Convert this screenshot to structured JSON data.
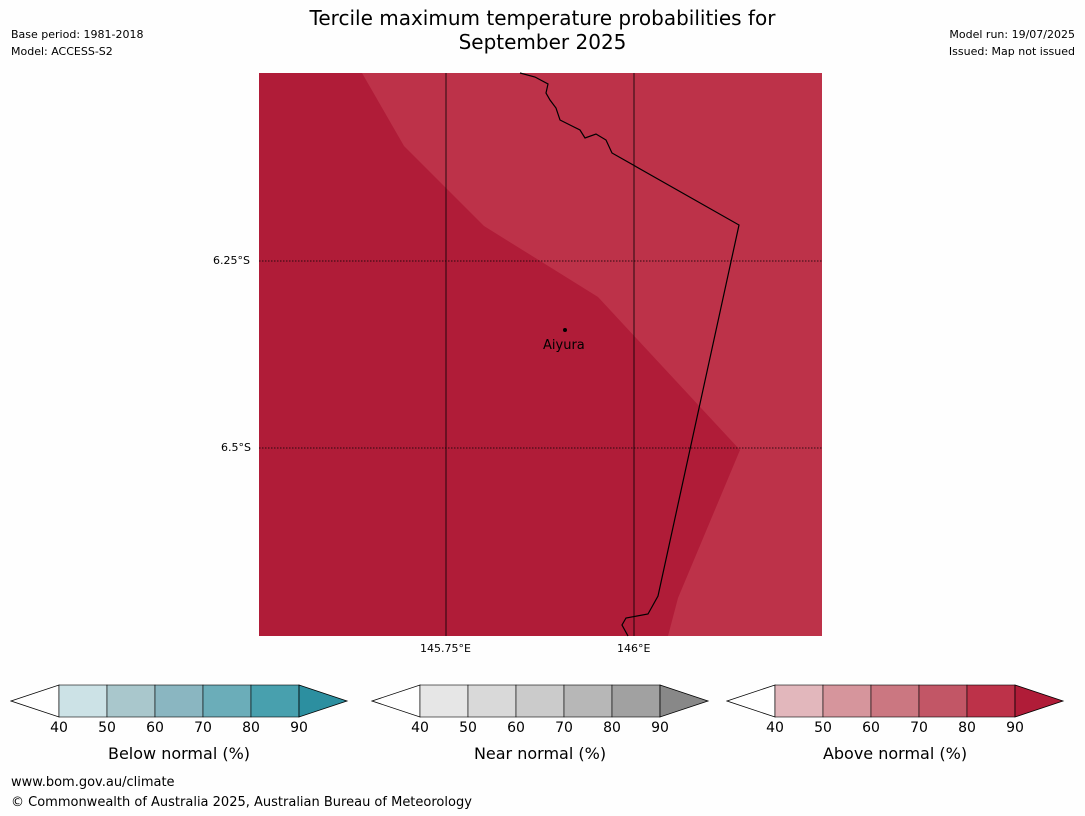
{
  "header": {
    "title_line1": "Tercile maximum temperature probabilities for",
    "title_line2": "September 2025",
    "base_period": "Base period: 1981-2018",
    "model": "Model: ACCESS-S2",
    "model_run": "Model run: 19/07/2025",
    "issued": "Issued: Map not issued"
  },
  "map": {
    "lat_labels": [
      "6.25°S",
      "6.5°S"
    ],
    "lon_labels": [
      "145.75°E",
      "146°E"
    ],
    "place": "Aiyura",
    "colors": {
      "prob_80_90": "#b01c38",
      "prob_70_80": "#bd3249",
      "border": "#000000"
    }
  },
  "legends": [
    {
      "label": "Below normal (%)",
      "ticks": [
        "40",
        "50",
        "60",
        "70",
        "80",
        "90"
      ],
      "colors": [
        "#cce2e6",
        "#a9c7cc",
        "#8ab6c1",
        "#6badb9",
        "#48a0ae"
      ],
      "arrow_color": "#2c8fa0"
    },
    {
      "label": "Near normal (%)",
      "ticks": [
        "40",
        "50",
        "60",
        "70",
        "80",
        "90"
      ],
      "colors": [
        "#e6e6e6",
        "#d9d9d9",
        "#cbcbcb",
        "#b7b7b7",
        "#a1a1a1"
      ],
      "arrow_color": "#888888"
    },
    {
      "label": "Above normal (%)",
      "ticks": [
        "40",
        "50",
        "60",
        "70",
        "80",
        "90"
      ],
      "colors": [
        "#e2b7bc",
        "#d6959c",
        "#cb7781",
        "#c25666",
        "#bd3249"
      ],
      "arrow_color": "#b01c38"
    }
  ],
  "footer": {
    "website": "www.bom.gov.au/climate",
    "copyright": "© Commonwealth of Australia 2025, Australian Bureau of Meteorology"
  }
}
